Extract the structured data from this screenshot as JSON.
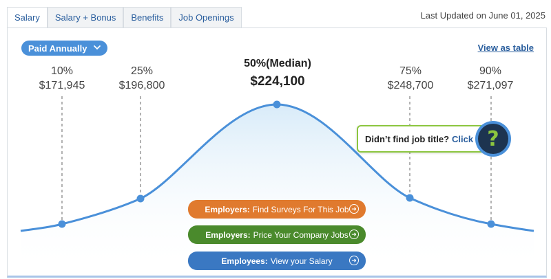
{
  "tabs": [
    {
      "label": "Salary"
    },
    {
      "label": "Salary + Bonus"
    },
    {
      "label": "Benefits"
    },
    {
      "label": "Job Openings"
    }
  ],
  "last_updated": "Last Updated on June 01, 2025",
  "pay_period": {
    "selected": "Paid Annually"
  },
  "view_as_table": "View as table",
  "percentiles": {
    "p10": {
      "label": "10%",
      "value": "$171,945"
    },
    "p25": {
      "label": "25%",
      "value": "$196,800"
    },
    "p50": {
      "label": "50%(Median)",
      "value": "$224,100"
    },
    "p75": {
      "label": "75%",
      "value": "$248,700"
    },
    "p90": {
      "label": "90%",
      "value": "$271,097"
    }
  },
  "help_box": {
    "text": "Didn’t find job title?",
    "link": "Click",
    "icon": "question-mark-icon"
  },
  "cta": {
    "surveys": {
      "prefix": "Employers:",
      "text": "Find Surveys For This Job"
    },
    "price": {
      "prefix": "Employers:",
      "text": "Price Your Company Jobs"
    },
    "salary": {
      "prefix": "Employees:",
      "text": "View your Salary"
    }
  },
  "colors": {
    "curve": "#4a90d9",
    "accent_green": "#8cc63f",
    "orange": "#e07a2e",
    "green": "#4a8a2c",
    "blue": "#3a78c2"
  }
}
